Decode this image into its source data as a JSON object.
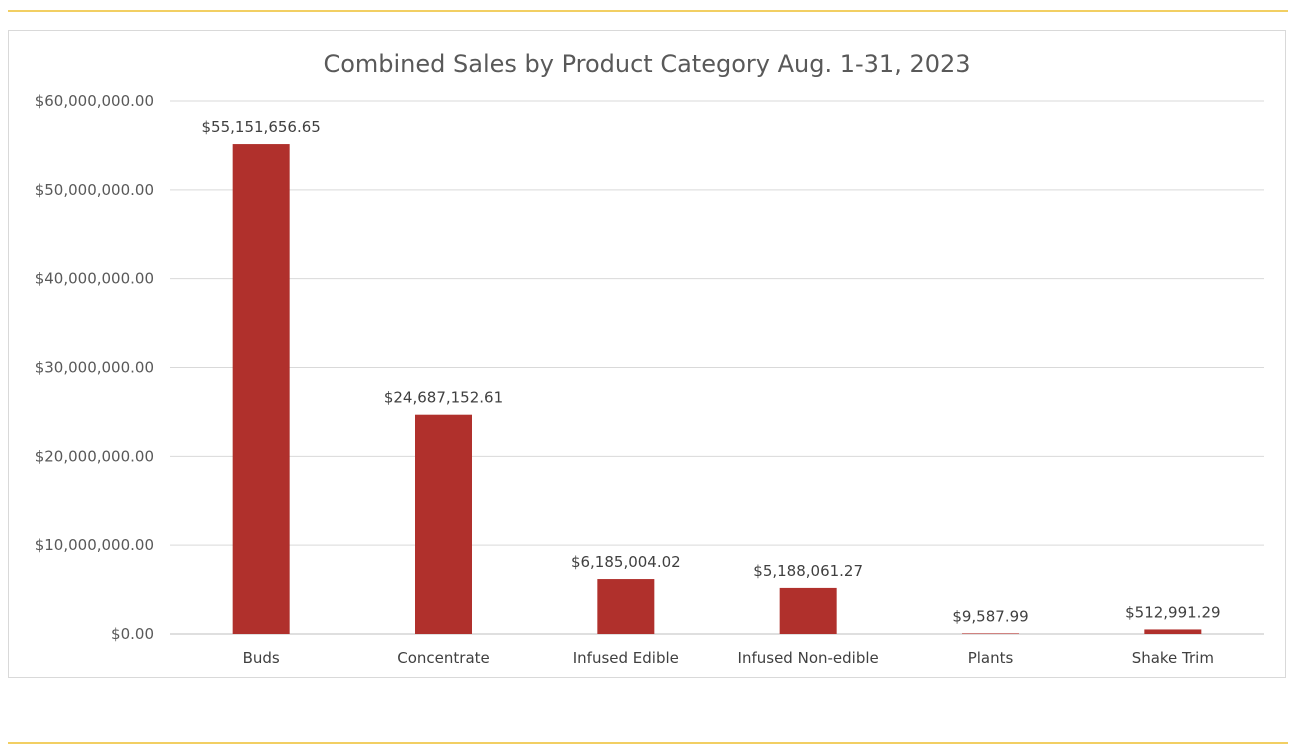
{
  "chart_data": {
    "type": "bar",
    "title": "Combined Sales by Product Category Aug. 1-31, 2023",
    "xlabel": "",
    "ylabel": "",
    "categories": [
      "Buds",
      "Concentrate",
      "Infused Edible",
      "Infused Non-edible",
      "Plants",
      "Shake Trim"
    ],
    "values": [
      55151656.65,
      24687152.61,
      6185004.02,
      5188061.27,
      9587.99,
      512991.29
    ],
    "data_labels": [
      "$55,151,656.65",
      "$24,687,152.61",
      "$6,185,004.02",
      "$5,188,061.27",
      "$9,587.99",
      "$512,991.29"
    ],
    "ylim": [
      0,
      60000000
    ],
    "yticks": [
      0,
      10000000,
      20000000,
      30000000,
      40000000,
      50000000,
      60000000
    ],
    "ytick_labels": [
      "$0.00",
      "$10,000,000.00",
      "$20,000,000.00",
      "$30,000,000.00",
      "$40,000,000.00",
      "$50,000,000.00",
      "$60,000,000.00"
    ],
    "grid": true,
    "legend": "none",
    "bar_color": "#b0302c"
  }
}
